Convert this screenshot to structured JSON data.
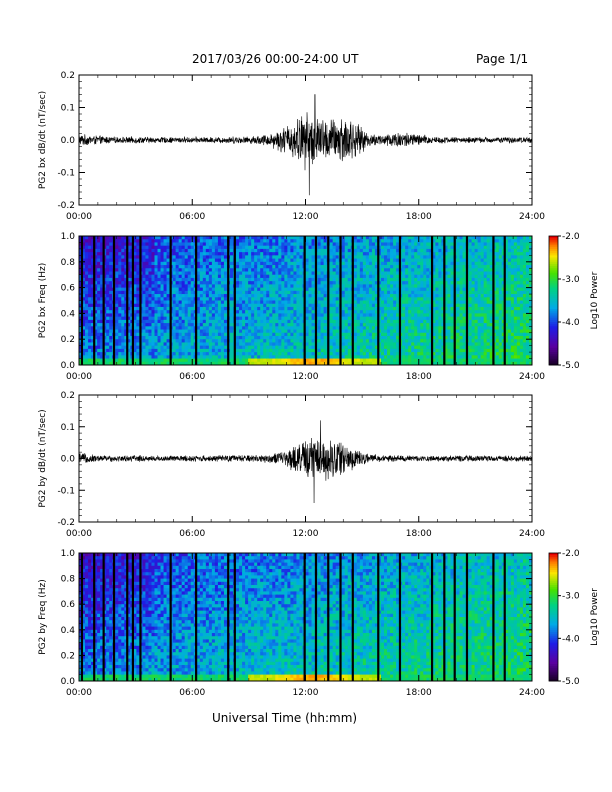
{
  "header": {
    "title": "2017/03/26  00:00-24:00 UT",
    "page": "Page 1/1",
    "xlabel": "Universal Time (hh:mm)"
  },
  "colors": {
    "trace": "#000000",
    "axis": "#000000",
    "background": "#ffffff"
  },
  "chart_data": [
    {
      "type": "line",
      "name": "bx-dbdt",
      "ylabel": "PG2 bx dB/dt (nT/sec)",
      "ylim": [
        -0.2,
        0.2
      ],
      "yticks": [
        "0.2",
        "0.1",
        "0.0",
        "-0.1",
        "-0.2"
      ],
      "ytick_values": [
        0.2,
        0.1,
        0.0,
        -0.1,
        -0.2
      ],
      "xlim": [
        0,
        24
      ],
      "xticks": [
        "00:00",
        "06:00",
        "12:00",
        "18:00",
        "24:00"
      ],
      "xtick_values": [
        0,
        6,
        12,
        18,
        24
      ],
      "envelope": {
        "hours": [
          0,
          1,
          2,
          3,
          4,
          5,
          6,
          7,
          8,
          9,
          10,
          10.5,
          11,
          11.5,
          12,
          12.5,
          13,
          13.5,
          14,
          14.5,
          15,
          15.5,
          16,
          16.5,
          17,
          17.5,
          18,
          19,
          20,
          21,
          22,
          23,
          24
        ],
        "amplitude": [
          0.02,
          0.015,
          0.01,
          0.012,
          0.01,
          0.01,
          0.01,
          0.01,
          0.012,
          0.012,
          0.02,
          0.035,
          0.05,
          0.07,
          0.1,
          0.085,
          0.07,
          0.075,
          0.09,
          0.07,
          0.04,
          0.02,
          0.02,
          0.025,
          0.03,
          0.025,
          0.02,
          0.012,
          0.01,
          0.01,
          0.01,
          0.01,
          0.01
        ]
      },
      "extremes": {
        "max": 0.14,
        "max_hour": 12.5,
        "min": -0.17,
        "min_hour": 12.2
      }
    },
    {
      "type": "heatmap",
      "name": "bx-spectrogram",
      "ylabel": "PG2 bx Freq (Hz)",
      "ylim": [
        0.0,
        1.0
      ],
      "yticks": [
        "1.0",
        "0.8",
        "0.6",
        "0.4",
        "0.2",
        "0.0"
      ],
      "ytick_values": [
        1.0,
        0.8,
        0.6,
        0.4,
        0.2,
        0.0
      ],
      "xlim": [
        0,
        24
      ],
      "xticks": [
        "00:00",
        "06:00",
        "12:00",
        "18:00",
        "24:00"
      ],
      "xtick_values": [
        0,
        6,
        12,
        18,
        24
      ],
      "colorbar": {
        "label": "Log10 Power",
        "range": [
          -5.0,
          -2.0
        ],
        "ticks": [
          "-2.0",
          "-3.0",
          "-4.0",
          "-5.0"
        ],
        "tick_values": [
          -2.0,
          -3.0,
          -4.0,
          -5.0
        ]
      },
      "data_gap_hours": [
        0.15,
        0.8,
        1.3,
        1.85,
        2.55,
        2.85,
        3.25,
        4.85,
        6.2,
        7.9,
        8.25,
        11.95,
        12.55,
        13.2,
        13.85,
        14.5,
        15.85,
        17.0,
        18.7,
        19.35,
        19.9,
        20.55,
        21.95,
        22.55
      ]
    },
    {
      "type": "line",
      "name": "by-dbdt",
      "ylabel": "PG2 by dB/dt (nT/sec)",
      "ylim": [
        -0.2,
        0.2
      ],
      "yticks": [
        "0.2",
        "0.1",
        "0.0",
        "-0.1",
        "-0.2"
      ],
      "ytick_values": [
        0.2,
        0.1,
        0.0,
        -0.1,
        -0.2
      ],
      "xlim": [
        0,
        24
      ],
      "xticks": [
        "00:00",
        "06:00",
        "12:00",
        "18:00",
        "24:00"
      ],
      "xtick_values": [
        0,
        6,
        12,
        18,
        24
      ],
      "envelope": {
        "hours": [
          0,
          1,
          2,
          3,
          4,
          5,
          6,
          7,
          8,
          9,
          10,
          10.5,
          11,
          11.5,
          12,
          12.5,
          13,
          13.5,
          14,
          14.5,
          15,
          15.5,
          16,
          17,
          18,
          19,
          20,
          21,
          22,
          23,
          24
        ],
        "amplitude": [
          0.02,
          0.012,
          0.01,
          0.012,
          0.01,
          0.01,
          0.012,
          0.01,
          0.012,
          0.012,
          0.015,
          0.02,
          0.03,
          0.05,
          0.065,
          0.08,
          0.07,
          0.075,
          0.065,
          0.04,
          0.02,
          0.015,
          0.012,
          0.012,
          0.01,
          0.01,
          0.01,
          0.01,
          0.01,
          0.01,
          0.01
        ]
      },
      "extremes": {
        "max": 0.12,
        "max_hour": 12.8,
        "min": -0.14,
        "min_hour": 12.45
      }
    },
    {
      "type": "heatmap",
      "name": "by-spectrogram",
      "ylabel": "PG2 by Freq (Hz)",
      "ylim": [
        0.0,
        1.0
      ],
      "yticks": [
        "1.0",
        "0.8",
        "0.6",
        "0.4",
        "0.2",
        "0.0"
      ],
      "ytick_values": [
        1.0,
        0.8,
        0.6,
        0.4,
        0.2,
        0.0
      ],
      "xlim": [
        0,
        24
      ],
      "xticks": [
        "00:00",
        "06:00",
        "12:00",
        "18:00",
        "24:00"
      ],
      "xtick_values": [
        0,
        6,
        12,
        18,
        24
      ],
      "colorbar": {
        "label": "Log10 Power",
        "range": [
          -5.0,
          -2.0
        ],
        "ticks": [
          "-2.0",
          "-3.0",
          "-4.0",
          "-5.0"
        ],
        "tick_values": [
          -2.0,
          -3.0,
          -4.0,
          -5.0
        ]
      },
      "data_gap_hours": [
        0.15,
        0.8,
        1.3,
        1.85,
        2.55,
        2.85,
        3.25,
        4.85,
        6.2,
        7.9,
        8.25,
        11.95,
        12.55,
        13.2,
        13.85,
        14.5,
        15.85,
        17.0,
        18.7,
        19.35,
        19.9,
        20.55,
        21.95,
        22.55
      ]
    }
  ]
}
